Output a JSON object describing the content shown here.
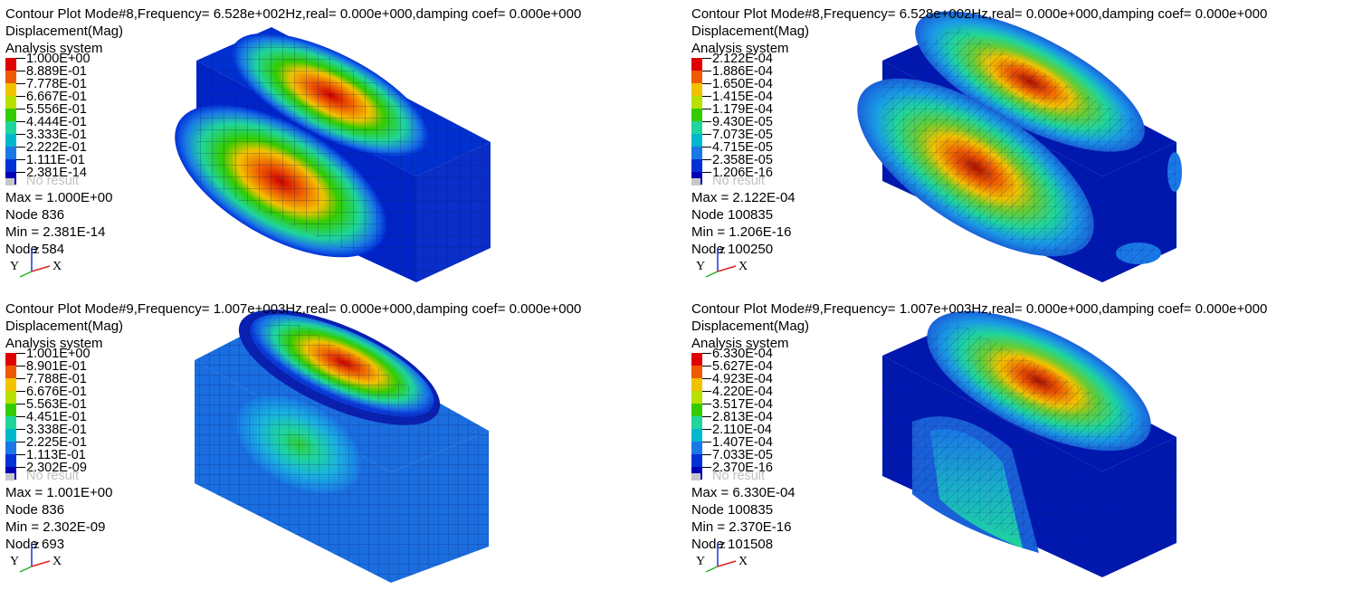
{
  "panels": [
    {
      "title": "Contour Plot Mode#8,Frequency=  6.528e+002Hz,real=  0.000e+000,damping coef=  0.000e+000",
      "quantity": "Displacement(Mag)",
      "system": "Analysis system",
      "legend": [
        "1.000E+00",
        "8.889E-01",
        "7.778E-01",
        "6.667E-01",
        "5.556E-01",
        "4.444E-01",
        "3.333E-01",
        "2.222E-01",
        "1.111E-01",
        "2.381E-14"
      ],
      "no_result": "No result",
      "max": "Max = 1.000E+00",
      "max_node": "Node 836",
      "min": "Min = 2.381E-14",
      "min_node": "Node 584"
    },
    {
      "title": "Contour Plot Mode#8,Frequency=  6.528e+002Hz,real=  0.000e+000,damping coef=  0.000e+000",
      "quantity": "Displacement(Mag)",
      "system": "Analysis system",
      "legend": [
        "2.122E-04",
        "1.886E-04",
        "1.650E-04",
        "1.415E-04",
        "1.179E-04",
        "9.430E-05",
        "7.073E-05",
        "4.715E-05",
        "2.358E-05",
        "1.206E-16"
      ],
      "no_result": "No result",
      "max": "Max = 2.122E-04",
      "max_node": "Node 100835",
      "min": "Min = 1.206E-16",
      "min_node": "Node 100250"
    },
    {
      "title": "Contour Plot Mode#9,Frequency=  1.007e+003Hz,real=  0.000e+000,damping coef=  0.000e+000",
      "quantity": "Displacement(Mag)",
      "system": "Analysis system",
      "legend": [
        "1.001E+00",
        "8.901E-01",
        "7.788E-01",
        "6.676E-01",
        "5.563E-01",
        "4.451E-01",
        "3.338E-01",
        "2.225E-01",
        "1.113E-01",
        "2.302E-09"
      ],
      "no_result": "No result",
      "max": "Max = 1.001E+00",
      "max_node": "Node 836",
      "min": "Min = 2.302E-09",
      "min_node": "Node 693"
    },
    {
      "title": "Contour Plot Mode#9,Frequency=  1.007e+003Hz,real=  0.000e+000,damping coef=  0.000e+000",
      "quantity": "Displacement(Mag)",
      "system": "Analysis system",
      "legend": [
        "6.330E-04",
        "5.627E-04",
        "4.923E-04",
        "4.220E-04",
        "3.517E-04",
        "2.813E-04",
        "2.110E-04",
        "1.407E-04",
        "7.033E-05",
        "2.370E-16"
      ],
      "no_result": "No result",
      "max": "Max = 6.330E-04",
      "max_node": "Node 100835",
      "min": "Min = 2.370E-16",
      "min_node": "Node 101508"
    }
  ],
  "legend_colors": [
    "#e00000",
    "#ee5a00",
    "#f2c200",
    "#b8e000",
    "#33cc00",
    "#1fd59c",
    "#00b8cc",
    "#1a78e6",
    "#0030d8",
    "#0000b4"
  ],
  "triad": {
    "x_label": "X",
    "y_label": "Y",
    "z_label": "Z"
  }
}
